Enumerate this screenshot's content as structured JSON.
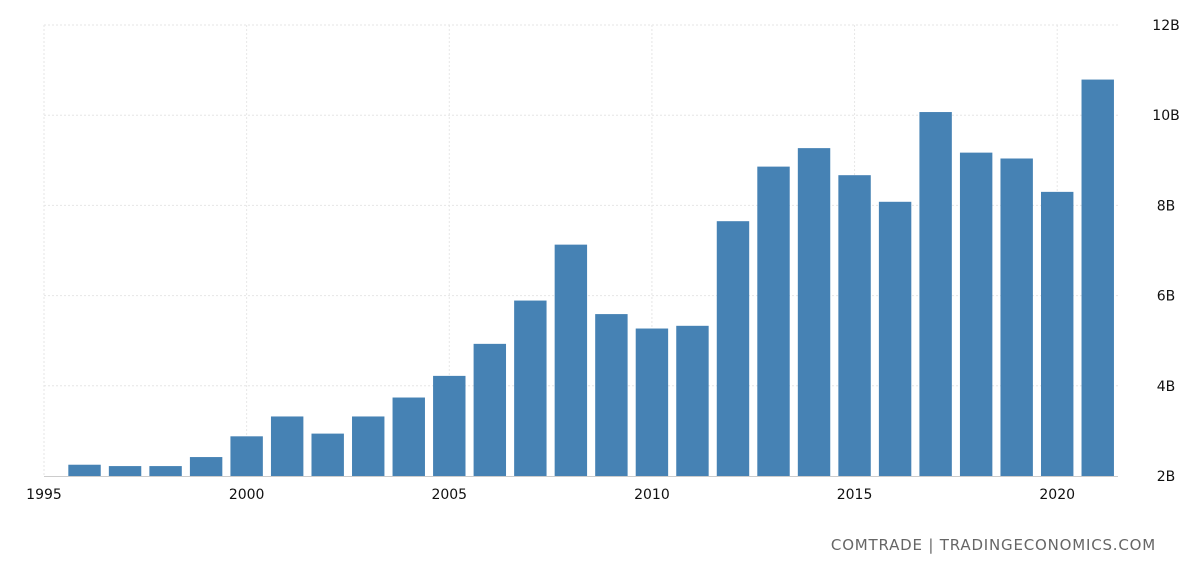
{
  "chart_data": {
    "type": "bar",
    "x": [
      1996,
      1997,
      1998,
      1999,
      2000,
      2001,
      2002,
      2003,
      2004,
      2005,
      2006,
      2007,
      2008,
      2009,
      2010,
      2011,
      2012,
      2013,
      2014,
      2015,
      2016,
      2017,
      2018,
      2019,
      2020,
      2021
    ],
    "values": [
      2.25,
      2.22,
      2.22,
      2.42,
      2.88,
      3.32,
      2.94,
      3.32,
      3.74,
      4.22,
      4.93,
      5.89,
      7.13,
      5.59,
      5.27,
      5.33,
      7.65,
      8.86,
      9.27,
      8.67,
      8.08,
      10.07,
      9.17,
      9.04,
      8.3,
      10.79
    ],
    "xlim": [
      1995,
      2021.5
    ],
    "ylim": [
      2,
      12
    ],
    "xticks": [
      1995,
      2000,
      2005,
      2010,
      2015,
      2020
    ],
    "xtick_labels": [
      "1995",
      "2000",
      "2005",
      "2010",
      "2015",
      "2020"
    ],
    "yticks": [
      2,
      4,
      6,
      8,
      10,
      12
    ],
    "ytick_labels": [
      "2B",
      "4B",
      "6B",
      "8B",
      "10B",
      "12B"
    ],
    "y_axis_side": "right",
    "grid": true,
    "bar_color": "#4682b4"
  },
  "source": "COMTRADE | TRADINGECONOMICS.COM"
}
